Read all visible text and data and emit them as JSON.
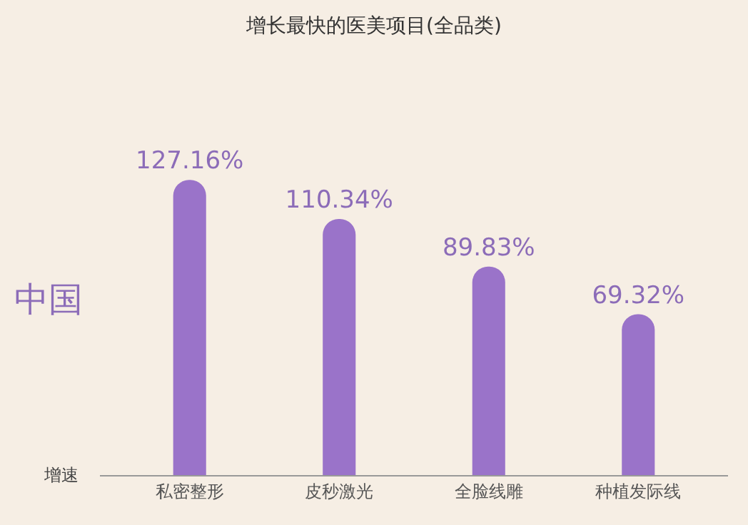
{
  "chart_data": {
    "type": "bar",
    "title": "增长最快的医美项目(全品类)",
    "ylabel": "增速",
    "categories": [
      "私密整形",
      "皮秒激光",
      "全脸线雕",
      "种植发际线"
    ],
    "values": [
      127.16,
      110.34,
      89.83,
      69.32
    ],
    "value_labels": [
      "127.16%",
      "110.34%",
      "89.83%",
      "69.32%"
    ],
    "color": "#9a73c9",
    "annotations": [
      "中国"
    ],
    "grid": false,
    "legend": false
  }
}
